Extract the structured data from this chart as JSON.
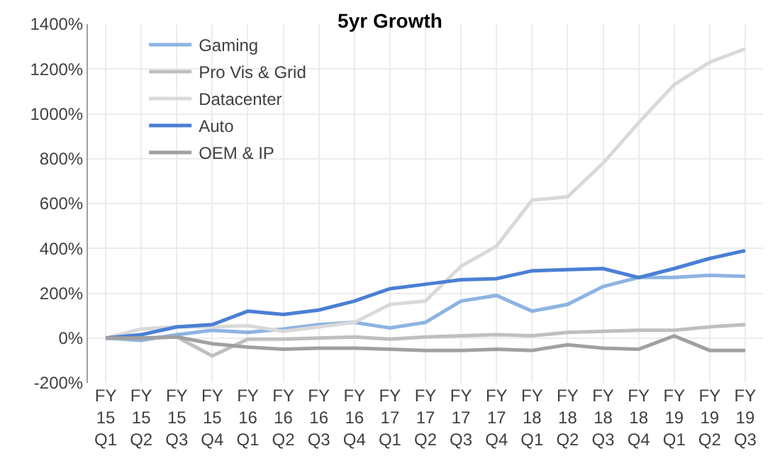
{
  "chart_data": {
    "type": "line",
    "title": "5yr Growth",
    "categories": [
      "FY 15 Q1",
      "FY 15 Q2",
      "FY 15 Q3",
      "FY 15 Q4",
      "FY 16 Q1",
      "FY 16 Q2",
      "FY 16 Q3",
      "FY 16 Q4",
      "FY 17 Q1",
      "FY 17 Q2",
      "FY 17 Q3",
      "FY 17 Q4",
      "FY 18 Q1",
      "FY 18 Q2",
      "FY 18 Q3",
      "FY 18 Q4",
      "FY 19 Q1",
      "FY 19 Q2",
      "FY 19 Q3"
    ],
    "series": [
      {
        "name": "Gaming",
        "color": "#8db4e2",
        "values": [
          0,
          -10,
          15,
          35,
          25,
          40,
          60,
          70,
          45,
          70,
          165,
          190,
          120,
          150,
          230,
          270,
          270,
          280,
          275
        ]
      },
      {
        "name": "Pro Vis & Grid",
        "color": "#bfbfbf",
        "values": [
          0,
          0,
          5,
          -80,
          -5,
          -5,
          0,
          5,
          -5,
          5,
          10,
          15,
          10,
          25,
          30,
          35,
          35,
          50,
          60
        ]
      },
      {
        "name": "Datacenter",
        "color": "#d9d9d9",
        "values": [
          0,
          40,
          50,
          50,
          55,
          30,
          50,
          70,
          150,
          165,
          320,
          410,
          615,
          630,
          780,
          960,
          1130,
          1230,
          1290
        ]
      },
      {
        "name": "Auto",
        "color": "#4a7fd4",
        "values": [
          0,
          15,
          50,
          60,
          120,
          105,
          125,
          165,
          220,
          240,
          260,
          265,
          300,
          305,
          310,
          270,
          310,
          355,
          390
        ]
      },
      {
        "name": "OEM & IP",
        "color": "#a0a0a0",
        "values": [
          0,
          0,
          5,
          -25,
          -40,
          -50,
          -45,
          -45,
          -50,
          -55,
          -55,
          -50,
          -55,
          -30,
          -45,
          -50,
          10,
          -55,
          -55
        ]
      }
    ],
    "ylim": [
      -200,
      1400
    ],
    "yticks": [
      {
        "value": -200,
        "label": "-200%"
      },
      {
        "value": 0,
        "label": "0%"
      },
      {
        "value": 200,
        "label": "200%"
      },
      {
        "value": 400,
        "label": "400%"
      },
      {
        "value": 600,
        "label": "600%"
      },
      {
        "value": 800,
        "label": "800%"
      },
      {
        "value": 1000,
        "label": "1000%"
      },
      {
        "value": 1200,
        "label": "1200%"
      },
      {
        "value": 1400,
        "label": "1400%"
      }
    ],
    "grid": true,
    "legend": "top left",
    "marker": "none",
    "line_style": "solid"
  }
}
